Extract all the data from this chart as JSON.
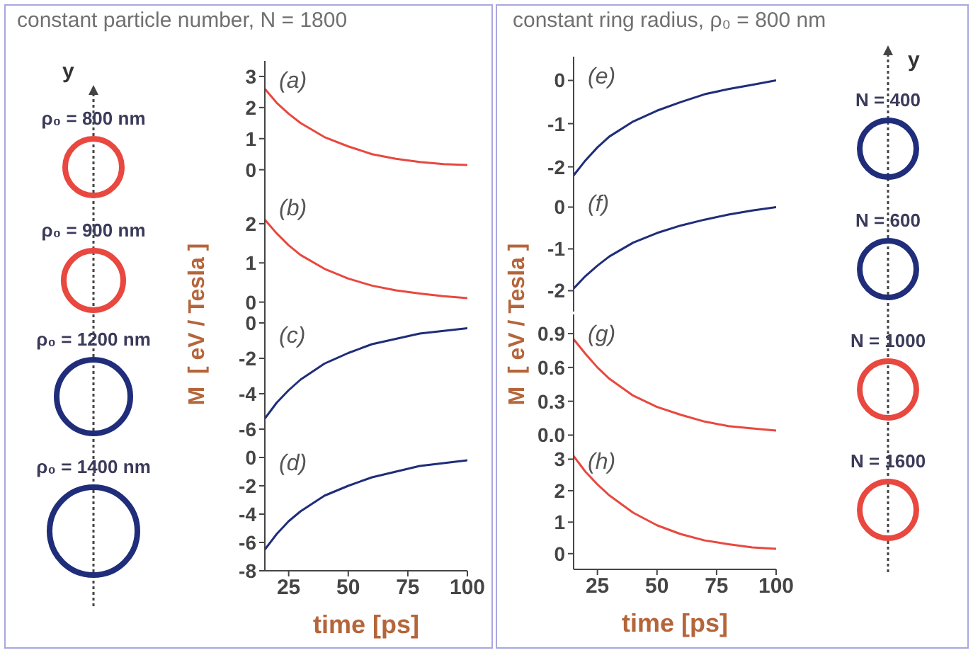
{
  "chart_data": [
    {
      "type": "line",
      "title": "constant particle number, N = 1800",
      "ylabel": "M  [ eV / Tesla ]",
      "annotations": [
        "(a)",
        "ρ₀ = 800 nm",
        "y"
      ],
      "x": [
        15,
        20,
        25,
        30,
        40,
        50,
        60,
        70,
        80,
        90,
        100
      ],
      "xlim": [
        15,
        100
      ],
      "xticks": [
        25,
        50,
        75,
        100
      ],
      "ylim": [
        -0.6,
        3.5
      ],
      "yticks": [
        0,
        1,
        2,
        3
      ],
      "tick_labels": "y",
      "series": [
        {
          "color": "#e8483f",
          "values": [
            2.6,
            2.15,
            1.8,
            1.5,
            1.05,
            0.75,
            0.5,
            0.35,
            0.25,
            0.18,
            0.15
          ]
        }
      ]
    },
    {
      "type": "line",
      "annotations": [
        "(b)",
        "ρ₀ = 900 nm"
      ],
      "x": [
        15,
        20,
        25,
        30,
        40,
        50,
        60,
        70,
        80,
        90,
        100
      ],
      "xlim": [
        15,
        100
      ],
      "xticks": [
        25,
        50,
        75,
        100
      ],
      "ylim": [
        -0.35,
        2.9
      ],
      "yticks": [
        0,
        1,
        2
      ],
      "tick_labels": "y",
      "series": [
        {
          "color": "#e8483f",
          "values": [
            2.1,
            1.75,
            1.45,
            1.2,
            0.85,
            0.6,
            0.42,
            0.3,
            0.22,
            0.15,
            0.1
          ]
        }
      ]
    },
    {
      "type": "line",
      "annotations": [
        "(c)",
        "ρ₀ = 1200 nm"
      ],
      "x": [
        15,
        20,
        25,
        30,
        40,
        50,
        60,
        70,
        80,
        90,
        100
      ],
      "xlim": [
        15,
        100
      ],
      "xticks": [
        25,
        50,
        75,
        100
      ],
      "ylim": [
        -6.8,
        0.4
      ],
      "yticks": [
        -6,
        -4,
        -2,
        0
      ],
      "tick_labels": "y",
      "series": [
        {
          "color": "#1f2d7a",
          "values": [
            -5.4,
            -4.5,
            -3.8,
            -3.2,
            -2.3,
            -1.7,
            -1.2,
            -0.9,
            -0.6,
            -0.45,
            -0.3
          ]
        }
      ]
    },
    {
      "type": "line",
      "xlabel": "time [ps]",
      "annotations": [
        "(d)",
        "ρ₀ = 1400 nm"
      ],
      "x": [
        15,
        20,
        25,
        30,
        40,
        50,
        60,
        70,
        80,
        90,
        100
      ],
      "xlim": [
        15,
        100
      ],
      "xticks": [
        25,
        50,
        75,
        100
      ],
      "ylim": [
        -8,
        1
      ],
      "yticks": [
        -8,
        -6,
        -4,
        -2,
        0
      ],
      "series": [
        {
          "color": "#1f2d7a",
          "values": [
            -6.5,
            -5.4,
            -4.5,
            -3.8,
            -2.7,
            -2.0,
            -1.4,
            -1.0,
            -0.6,
            -0.4,
            -0.2
          ]
        }
      ]
    },
    {
      "type": "line",
      "title": "constant ring radius, ρ₀ = 800 nm",
      "ylabel": "M  [ eV / Tesla ]",
      "annotations": [
        "(e)",
        "N = 400",
        "y"
      ],
      "x": [
        15,
        20,
        25,
        30,
        40,
        50,
        60,
        70,
        80,
        90,
        100
      ],
      "xlim": [
        15,
        100
      ],
      "xticks": [
        25,
        50,
        75,
        100
      ],
      "ylim": [
        -2.4,
        0.55
      ],
      "yticks": [
        -2,
        -1,
        0
      ],
      "tick_labels": "y",
      "series": [
        {
          "color": "#1f2d7a",
          "values": [
            -2.2,
            -1.85,
            -1.55,
            -1.3,
            -0.95,
            -0.7,
            -0.5,
            -0.32,
            -0.2,
            -0.1,
            0
          ]
        }
      ]
    },
    {
      "type": "line",
      "annotations": [
        "(f)",
        "N = 600"
      ],
      "x": [
        15,
        20,
        25,
        30,
        40,
        50,
        60,
        70,
        80,
        90,
        100
      ],
      "xlim": [
        15,
        100
      ],
      "xticks": [
        25,
        50,
        75,
        100
      ],
      "ylim": [
        -2.5,
        0.55
      ],
      "yticks": [
        -2,
        -1,
        0
      ],
      "tick_labels": "y",
      "series": [
        {
          "color": "#1f2d7a",
          "values": [
            -1.95,
            -1.65,
            -1.4,
            -1.18,
            -0.85,
            -0.62,
            -0.44,
            -0.3,
            -0.18,
            -0.08,
            0
          ]
        }
      ]
    },
    {
      "type": "line",
      "annotations": [
        "(g)",
        "N = 1000"
      ],
      "x": [
        15,
        20,
        25,
        30,
        40,
        50,
        60,
        70,
        80,
        90,
        100
      ],
      "xlim": [
        15,
        100
      ],
      "xticks": [
        25,
        50,
        75,
        100
      ],
      "ylim": [
        -0.06,
        1.07
      ],
      "yticks": [
        {
          "value": 0,
          "label": "0.0"
        },
        0.3,
        0.6,
        0.9
      ],
      "tick_labels": "y",
      "series": [
        {
          "color": "#e8483f",
          "values": [
            0.85,
            0.72,
            0.6,
            0.5,
            0.35,
            0.25,
            0.18,
            0.12,
            0.08,
            0.06,
            0.04
          ]
        }
      ]
    },
    {
      "type": "line",
      "xlabel": "time [ps]",
      "annotations": [
        "(h)",
        "N = 1600"
      ],
      "x": [
        15,
        20,
        25,
        30,
        40,
        50,
        60,
        70,
        80,
        90,
        100
      ],
      "xlim": [
        15,
        100
      ],
      "xticks": [
        25,
        50,
        75,
        100
      ],
      "ylim": [
        -0.5,
        3.55
      ],
      "yticks": [
        0,
        1,
        2,
        3
      ],
      "series": [
        {
          "color": "#e8483f",
          "values": [
            3.1,
            2.6,
            2.2,
            1.85,
            1.3,
            0.9,
            0.62,
            0.42,
            0.3,
            0.2,
            0.15
          ]
        }
      ]
    }
  ]
}
